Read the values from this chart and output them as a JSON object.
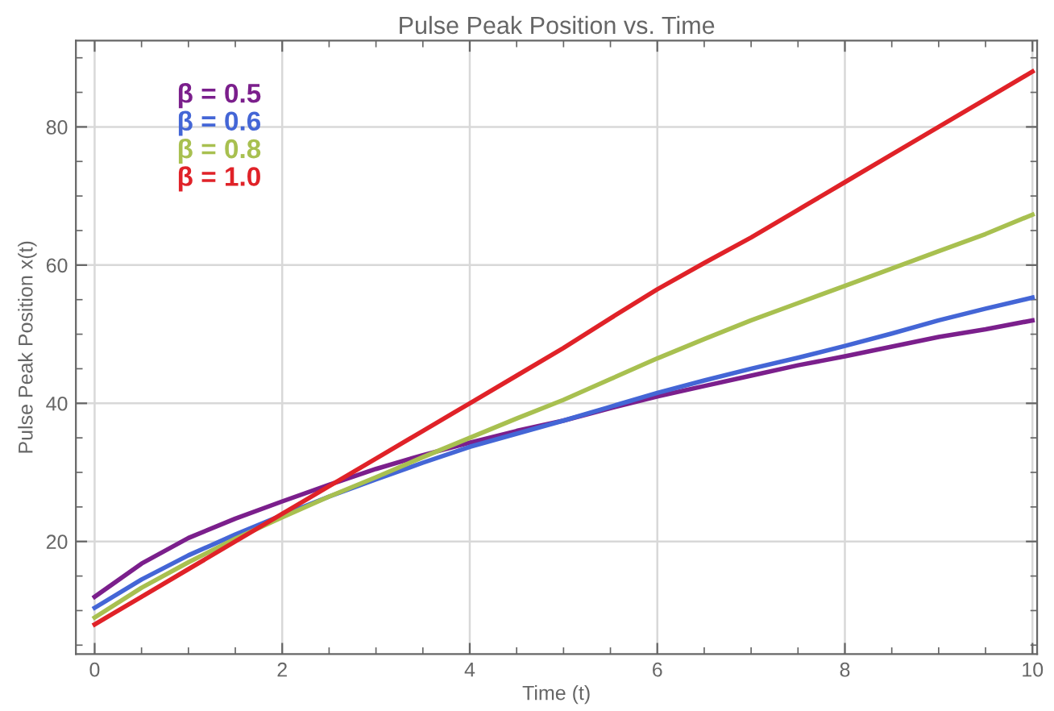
{
  "chart_data": {
    "type": "line",
    "title": "Pulse Peak Position vs. Time",
    "xlabel": "Time (t)",
    "ylabel": "Pulse Peak Position x(t)",
    "x": [
      0,
      0.5,
      1,
      1.5,
      2,
      2.5,
      3,
      3.5,
      4,
      4.5,
      5,
      5.5,
      6,
      6.5,
      7,
      7.5,
      8,
      8.5,
      9,
      9.5,
      10
    ],
    "series": [
      {
        "name": "β = 0.5",
        "color": "#7b1f8c",
        "values": [
          12,
          16.8,
          20.5,
          23.3,
          25.8,
          28.2,
          30.5,
          32.5,
          34.3,
          36,
          37.5,
          39.3,
          41,
          42.5,
          44,
          45.5,
          46.8,
          48.2,
          49.6,
          50.7,
          52
        ]
      },
      {
        "name": "β = 0.6",
        "color": "#4466d6",
        "values": [
          10.4,
          14.5,
          18,
          21,
          23.8,
          26.5,
          29,
          31.4,
          33.7,
          35.6,
          37.5,
          39.5,
          41.5,
          43.3,
          45,
          46.6,
          48.3,
          50.1,
          52,
          53.7,
          55.3
        ]
      },
      {
        "name": "β = 0.8",
        "color": "#a8c050",
        "values": [
          9,
          13.3,
          17,
          20.4,
          23.5,
          26.5,
          29.3,
          32.2,
          35,
          37.8,
          40.5,
          43.5,
          46.5,
          49.3,
          52,
          54.5,
          57,
          59.5,
          62,
          64.5,
          67.3
        ]
      },
      {
        "name": "β = 1.0",
        "color": "#e02228",
        "values": [
          8,
          12,
          16,
          20,
          24,
          28,
          32,
          36,
          40,
          44,
          48,
          52.3,
          56.5,
          60.3,
          64,
          68,
          72,
          76,
          80,
          84,
          88
        ]
      }
    ],
    "xlim": [
      -0.2,
      10.05
    ],
    "ylim": [
      3.7,
      92.5
    ],
    "xticks": [
      0,
      2,
      4,
      6,
      8,
      10
    ],
    "yticks": [
      20,
      40,
      60,
      80
    ],
    "grid": true,
    "legend": "top left",
    "marker": "none",
    "line_style": "solid"
  }
}
